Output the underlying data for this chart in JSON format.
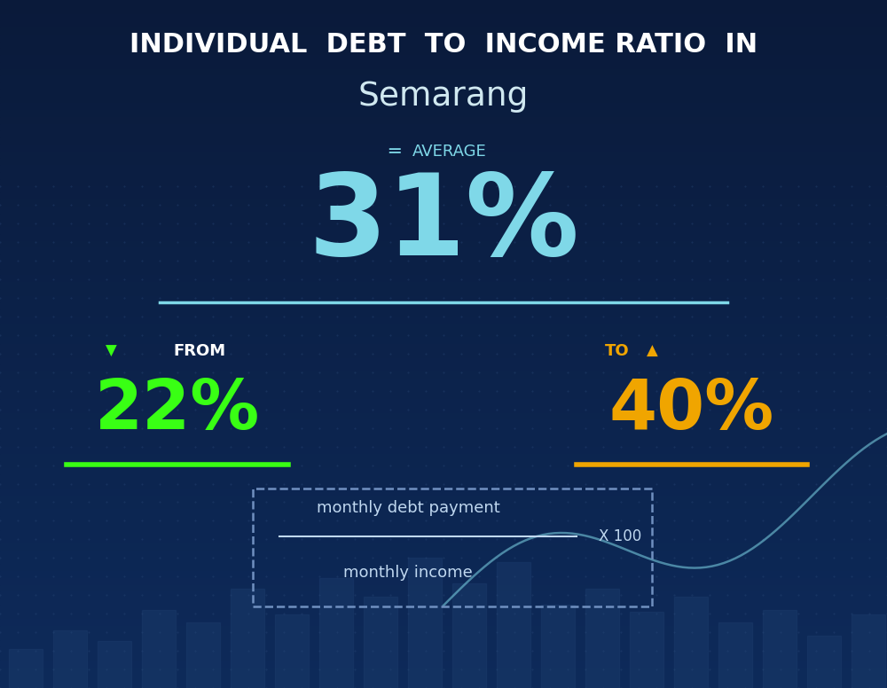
{
  "title_line1": "INDIVIDUAL  DEBT  TO  INCOME RATIO  IN",
  "title_line2": "Semarang",
  "average_label": "AVERAGE",
  "average_value": "31%",
  "from_label": "FROM",
  "from_value": "22%",
  "to_label": "TO",
  "to_value": "40%",
  "formula_numerator": "monthly debt payment",
  "formula_denominator": "monthly income",
  "formula_multiplier": "X 100",
  "bg_color_top": "#0a1a3a",
  "bg_color_bottom": "#0d2a5a",
  "title_color": "#ffffff",
  "subtitle_color": "#d0e8f0",
  "average_label_color": "#7fd8e8",
  "average_value_color": "#7fd8e8",
  "separator_color": "#7fd8e8",
  "from_arrow_color": "#39ff14",
  "from_label_color": "#ffffff",
  "from_value_color": "#39ff14",
  "from_underline_color": "#39ff14",
  "to_arrow_color": "#f0a500",
  "to_label_color": "#f0a500",
  "to_value_color": "#f0a500",
  "to_underline_color": "#f0a500",
  "formula_box_color": "#7090c0",
  "formula_text_color": "#c0d8f0",
  "bar_color": "#1a3a6a",
  "chart_line_color": "#7fd8e8"
}
